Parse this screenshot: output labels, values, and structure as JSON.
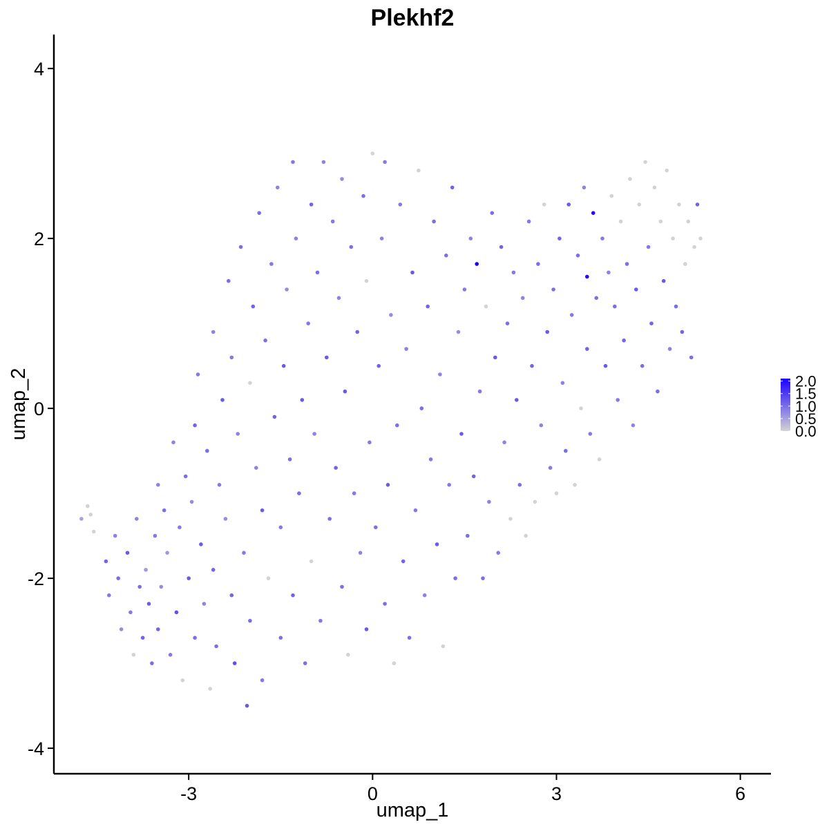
{
  "chart_data": {
    "type": "scatter",
    "title": "Plekhf2",
    "xlabel": "umap_1",
    "ylabel": "umap_2",
    "xlim": [
      -5.2,
      6.5
    ],
    "ylim": [
      -4.3,
      4.4
    ],
    "x_ticks": [
      -3,
      0,
      3,
      6
    ],
    "x_tick_labels": [
      "-3",
      "0",
      "3",
      "6"
    ],
    "y_ticks": [
      -4,
      -2,
      0,
      2,
      4
    ],
    "y_tick_labels": [
      "-4",
      "-2",
      "0",
      "2",
      "4"
    ],
    "grid": false,
    "legend": {
      "placement": "right",
      "type": "colorbar",
      "range": [
        0,
        2.1
      ],
      "ticks": [
        0.0,
        0.5,
        1.0,
        1.5,
        2.0
      ],
      "tick_labels": [
        "0.0",
        "0.5",
        "1.0",
        "1.5",
        "2.0"
      ],
      "low_color": "#d3d3d3",
      "high_color": "#1a00ff"
    },
    "colors": {
      "low": "#d3d3d3",
      "high": "#1a00ff"
    },
    "value_field": "expression",
    "points": [
      [
        -4.75,
        -1.3,
        0.5
      ],
      [
        -4.65,
        -1.15,
        0
      ],
      [
        -4.6,
        -1.25,
        0
      ],
      [
        -4.55,
        -1.45,
        0
      ],
      [
        -4.35,
        -1.8,
        1.1
      ],
      [
        -4.3,
        -2.2,
        0.9
      ],
      [
        -4.2,
        -1.5,
        0.8
      ],
      [
        -4.15,
        -2.0,
        1.0
      ],
      [
        -4.1,
        -2.6,
        0.7
      ],
      [
        -4.0,
        -1.7,
        1.2
      ],
      [
        -3.95,
        -2.4,
        0.9
      ],
      [
        -3.9,
        -2.9,
        0
      ],
      [
        -3.85,
        -1.3,
        0.8
      ],
      [
        -3.8,
        -2.1,
        1.0
      ],
      [
        -3.75,
        -2.7,
        1.1
      ],
      [
        -3.7,
        -1.9,
        0.6
      ],
      [
        -3.65,
        -2.3,
        1.2
      ],
      [
        -3.6,
        -3.0,
        1.0
      ],
      [
        -3.55,
        -1.5,
        0.9
      ],
      [
        -3.5,
        -0.9,
        0.8
      ],
      [
        -3.5,
        -2.6,
        1.1
      ],
      [
        -3.45,
        -2.1,
        0.7
      ],
      [
        -3.4,
        -1.2,
        1.0
      ],
      [
        -3.35,
        -1.7,
        0.6
      ],
      [
        -3.3,
        -2.9,
        0.9
      ],
      [
        -3.25,
        -0.4,
        0.8
      ],
      [
        -3.2,
        -2.4,
        1.3
      ],
      [
        -3.15,
        -1.4,
        0.9
      ],
      [
        -3.1,
        -3.2,
        0
      ],
      [
        -3.05,
        -0.8,
        1.0
      ],
      [
        -3.0,
        -2.0,
        1.2
      ],
      [
        -2.95,
        -1.1,
        0.7
      ],
      [
        -2.9,
        -2.7,
        1.0
      ],
      [
        -2.9,
        -0.2,
        1.1
      ],
      [
        -2.85,
        0.4,
        0.9
      ],
      [
        -2.8,
        -1.6,
        1.2
      ],
      [
        -2.75,
        -2.3,
        0.8
      ],
      [
        -2.7,
        -0.5,
        1.0
      ],
      [
        -2.65,
        -3.3,
        0
      ],
      [
        -2.6,
        -1.9,
        1.1
      ],
      [
        -2.6,
        0.9,
        0.8
      ],
      [
        -2.55,
        -2.8,
        1.0
      ],
      [
        -2.5,
        -0.9,
        0.9
      ],
      [
        -2.45,
        0.1,
        1.2
      ],
      [
        -2.4,
        -1.3,
        0.7
      ],
      [
        -2.35,
        1.5,
        1.0
      ],
      [
        -2.3,
        -2.2,
        1.1
      ],
      [
        -2.3,
        0.6,
        0.9
      ],
      [
        -2.25,
        -3.0,
        1.3
      ],
      [
        -2.2,
        -0.3,
        0.8
      ],
      [
        -2.15,
        1.9,
        1.0
      ],
      [
        -2.1,
        -1.7,
        0.9
      ],
      [
        -2.05,
        -3.5,
        1.2
      ],
      [
        -2.0,
        0.3,
        0
      ],
      [
        -2.0,
        -2.5,
        1.0
      ],
      [
        -1.95,
        1.2,
        1.1
      ],
      [
        -1.9,
        -0.7,
        0.8
      ],
      [
        -1.85,
        2.3,
        1.0
      ],
      [
        -1.8,
        -1.2,
        1.2
      ],
      [
        -1.8,
        -3.2,
        0.9
      ],
      [
        -1.75,
        0.8,
        1.0
      ],
      [
        -1.7,
        -2.0,
        0
      ],
      [
        -1.65,
        1.7,
        0.9
      ],
      [
        -1.6,
        -0.1,
        1.1
      ],
      [
        -1.55,
        2.6,
        0.8
      ],
      [
        -1.5,
        -2.7,
        1.0
      ],
      [
        -1.5,
        -1.4,
        0.9
      ],
      [
        -1.45,
        0.5,
        1.2
      ],
      [
        -1.4,
        1.4,
        0.7
      ],
      [
        -1.35,
        -0.6,
        1.0
      ],
      [
        -1.3,
        2.9,
        0.9
      ],
      [
        -1.3,
        -2.2,
        1.1
      ],
      [
        -1.25,
        2.0,
        0.8
      ],
      [
        -1.2,
        -1.0,
        1.0
      ],
      [
        -1.15,
        0.1,
        1.2
      ],
      [
        -1.1,
        -3.0,
        1.0
      ],
      [
        -1.05,
        1.0,
        0.9
      ],
      [
        -1.0,
        2.4,
        1.1
      ],
      [
        -1.0,
        -1.8,
        0
      ],
      [
        -0.95,
        -0.3,
        0.8
      ],
      [
        -0.9,
        1.6,
        1.0
      ],
      [
        -0.85,
        -2.5,
        0.9
      ],
      [
        -0.8,
        2.9,
        0.8
      ],
      [
        -0.75,
        0.6,
        1.2
      ],
      [
        -0.7,
        -1.3,
        1.0
      ],
      [
        -0.65,
        2.2,
        0.9
      ],
      [
        -0.6,
        -0.7,
        1.1
      ],
      [
        -0.55,
        1.3,
        0.8
      ],
      [
        -0.5,
        -2.1,
        1.0
      ],
      [
        -0.5,
        2.7,
        0.7
      ],
      [
        -0.45,
        0.2,
        1.2
      ],
      [
        -0.4,
        -2.9,
        0
      ],
      [
        -0.35,
        1.9,
        1.0
      ],
      [
        -0.3,
        -1.0,
        0.9
      ],
      [
        -0.25,
        0.9,
        1.1
      ],
      [
        -0.2,
        -1.7,
        0.8
      ],
      [
        -0.15,
        2.5,
        1.0
      ],
      [
        -0.1,
        -2.6,
        1.2
      ],
      [
        -0.1,
        1.5,
        0
      ],
      [
        -0.05,
        -0.4,
        0.9
      ],
      [
        0.0,
        3.0,
        0
      ],
      [
        0.05,
        -1.4,
        1.0
      ],
      [
        0.1,
        0.5,
        1.1
      ],
      [
        0.15,
        2.0,
        0.8
      ],
      [
        0.2,
        -2.3,
        1.0
      ],
      [
        0.2,
        2.9,
        0.9
      ],
      [
        0.25,
        -0.9,
        1.2
      ],
      [
        0.3,
        1.1,
        0.7
      ],
      [
        0.35,
        -3.0,
        0
      ],
      [
        0.4,
        -0.2,
        1.0
      ],
      [
        0.45,
        2.4,
        0.9
      ],
      [
        0.5,
        -1.8,
        1.1
      ],
      [
        0.55,
        0.7,
        0.8
      ],
      [
        0.6,
        -2.7,
        1.0
      ],
      [
        0.65,
        1.6,
        1.2
      ],
      [
        0.7,
        -1.2,
        0.9
      ],
      [
        0.75,
        2.8,
        0
      ],
      [
        0.8,
        0.0,
        1.0
      ],
      [
        0.85,
        -2.2,
        0.8
      ],
      [
        0.9,
        1.2,
        1.1
      ],
      [
        0.95,
        -0.6,
        0.9
      ],
      [
        1.0,
        2.2,
        1.0
      ],
      [
        1.05,
        -1.6,
        1.2
      ],
      [
        1.1,
        0.4,
        0.8
      ],
      [
        1.15,
        -2.8,
        0
      ],
      [
        1.2,
        1.8,
        1.0
      ],
      [
        1.25,
        -0.9,
        0.9
      ],
      [
        1.3,
        2.6,
        1.1
      ],
      [
        1.35,
        -2.0,
        1.0
      ],
      [
        1.4,
        0.9,
        0.7
      ],
      [
        1.45,
        -0.3,
        1.2
      ],
      [
        1.5,
        1.4,
        0.9
      ],
      [
        1.55,
        -1.5,
        1.0
      ],
      [
        1.6,
        2.0,
        0.8
      ],
      [
        1.65,
        -0.8,
        1.1
      ],
      [
        1.7,
        1.7,
        2.1
      ],
      [
        1.75,
        0.2,
        0.9
      ],
      [
        1.8,
        -2.0,
        1.0
      ],
      [
        1.85,
        1.2,
        0
      ],
      [
        1.9,
        -1.1,
        0.8
      ],
      [
        1.95,
        2.3,
        1.0
      ],
      [
        2.0,
        0.6,
        1.2
      ],
      [
        2.05,
        -1.7,
        0.9
      ],
      [
        2.1,
        1.9,
        1.1
      ],
      [
        2.15,
        -0.4,
        0.8
      ],
      [
        2.2,
        1.0,
        1.0
      ],
      [
        2.25,
        -1.3,
        0
      ],
      [
        2.3,
        1.6,
        0.9
      ],
      [
        2.35,
        0.1,
        1.2
      ],
      [
        2.4,
        -0.9,
        1.0
      ],
      [
        2.45,
        1.3,
        0.8
      ],
      [
        2.5,
        -1.5,
        0
      ],
      [
        2.55,
        2.2,
        0.9
      ],
      [
        2.6,
        0.5,
        1.1
      ],
      [
        2.65,
        -1.1,
        0
      ],
      [
        2.7,
        1.7,
        1.0
      ],
      [
        2.75,
        -0.2,
        0.8
      ],
      [
        2.8,
        2.4,
        0
      ],
      [
        2.85,
        0.9,
        1.2
      ],
      [
        2.9,
        -0.7,
        0.9
      ],
      [
        2.95,
        1.4,
        1.0
      ],
      [
        3.0,
        -1.0,
        0
      ],
      [
        3.05,
        2.0,
        1.1
      ],
      [
        3.1,
        0.3,
        0.8
      ],
      [
        3.15,
        -0.5,
        1.0
      ],
      [
        3.2,
        2.4,
        1.2
      ],
      [
        3.25,
        1.1,
        0.9
      ],
      [
        3.3,
        -0.9,
        0
      ],
      [
        3.35,
        1.8,
        1.0
      ],
      [
        3.4,
        0.0,
        0
      ],
      [
        3.45,
        2.6,
        0.8
      ],
      [
        3.5,
        1.55,
        2.0
      ],
      [
        3.5,
        0.7,
        1.1
      ],
      [
        3.55,
        -0.3,
        0.9
      ],
      [
        3.6,
        2.3,
        2.0
      ],
      [
        3.65,
        1.3,
        1.0
      ],
      [
        3.7,
        -0.6,
        0
      ],
      [
        3.75,
        2.0,
        0.9
      ],
      [
        3.8,
        0.5,
        1.2
      ],
      [
        3.85,
        1.6,
        0.8
      ],
      [
        3.9,
        2.5,
        0
      ],
      [
        3.95,
        1.2,
        1.0
      ],
      [
        4.0,
        0.1,
        0.9
      ],
      [
        4.05,
        2.2,
        0
      ],
      [
        4.1,
        0.8,
        1.1
      ],
      [
        4.15,
        1.7,
        1.0
      ],
      [
        4.2,
        2.7,
        0
      ],
      [
        4.25,
        -0.2,
        0.8
      ],
      [
        4.3,
        1.4,
        1.2
      ],
      [
        4.35,
        2.4,
        0
      ],
      [
        4.4,
        0.5,
        1.0
      ],
      [
        4.45,
        2.9,
        0
      ],
      [
        4.5,
        1.9,
        0.9
      ],
      [
        4.55,
        1.0,
        1.1
      ],
      [
        4.6,
        2.6,
        0
      ],
      [
        4.65,
        0.2,
        1.0
      ],
      [
        4.7,
        2.2,
        0
      ],
      [
        4.75,
        1.5,
        1.2
      ],
      [
        4.8,
        2.8,
        0
      ],
      [
        4.85,
        0.7,
        0.8
      ],
      [
        4.9,
        2.0,
        0
      ],
      [
        4.95,
        1.2,
        1.0
      ],
      [
        5.0,
        2.4,
        0
      ],
      [
        5.05,
        0.9,
        1.1
      ],
      [
        5.1,
        1.7,
        0
      ],
      [
        5.15,
        2.2,
        0
      ],
      [
        5.2,
        0.6,
        1.0
      ],
      [
        5.25,
        1.9,
        0
      ],
      [
        5.3,
        2.4,
        1.1
      ],
      [
        5.35,
        2.0,
        0
      ]
    ]
  }
}
